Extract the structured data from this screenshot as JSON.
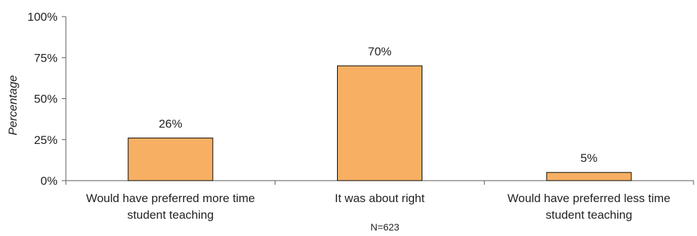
{
  "chart_data": {
    "type": "bar",
    "categories": [
      [
        "Would have preferred more time",
        "student teaching"
      ],
      [
        "It was about right"
      ],
      [
        "Would have preferred less time",
        "student teaching"
      ]
    ],
    "values": [
      26,
      70,
      5
    ],
    "data_labels": [
      "26%",
      "70%",
      "5%"
    ],
    "ylabel": "Percentage",
    "ylim": [
      0,
      100
    ],
    "yticks": [
      "0%",
      "25%",
      "50%",
      "75%",
      "100%"
    ],
    "note": "N=623",
    "grid": false,
    "bar_color": "#f7b063",
    "bar_edge_color": "#000000"
  }
}
